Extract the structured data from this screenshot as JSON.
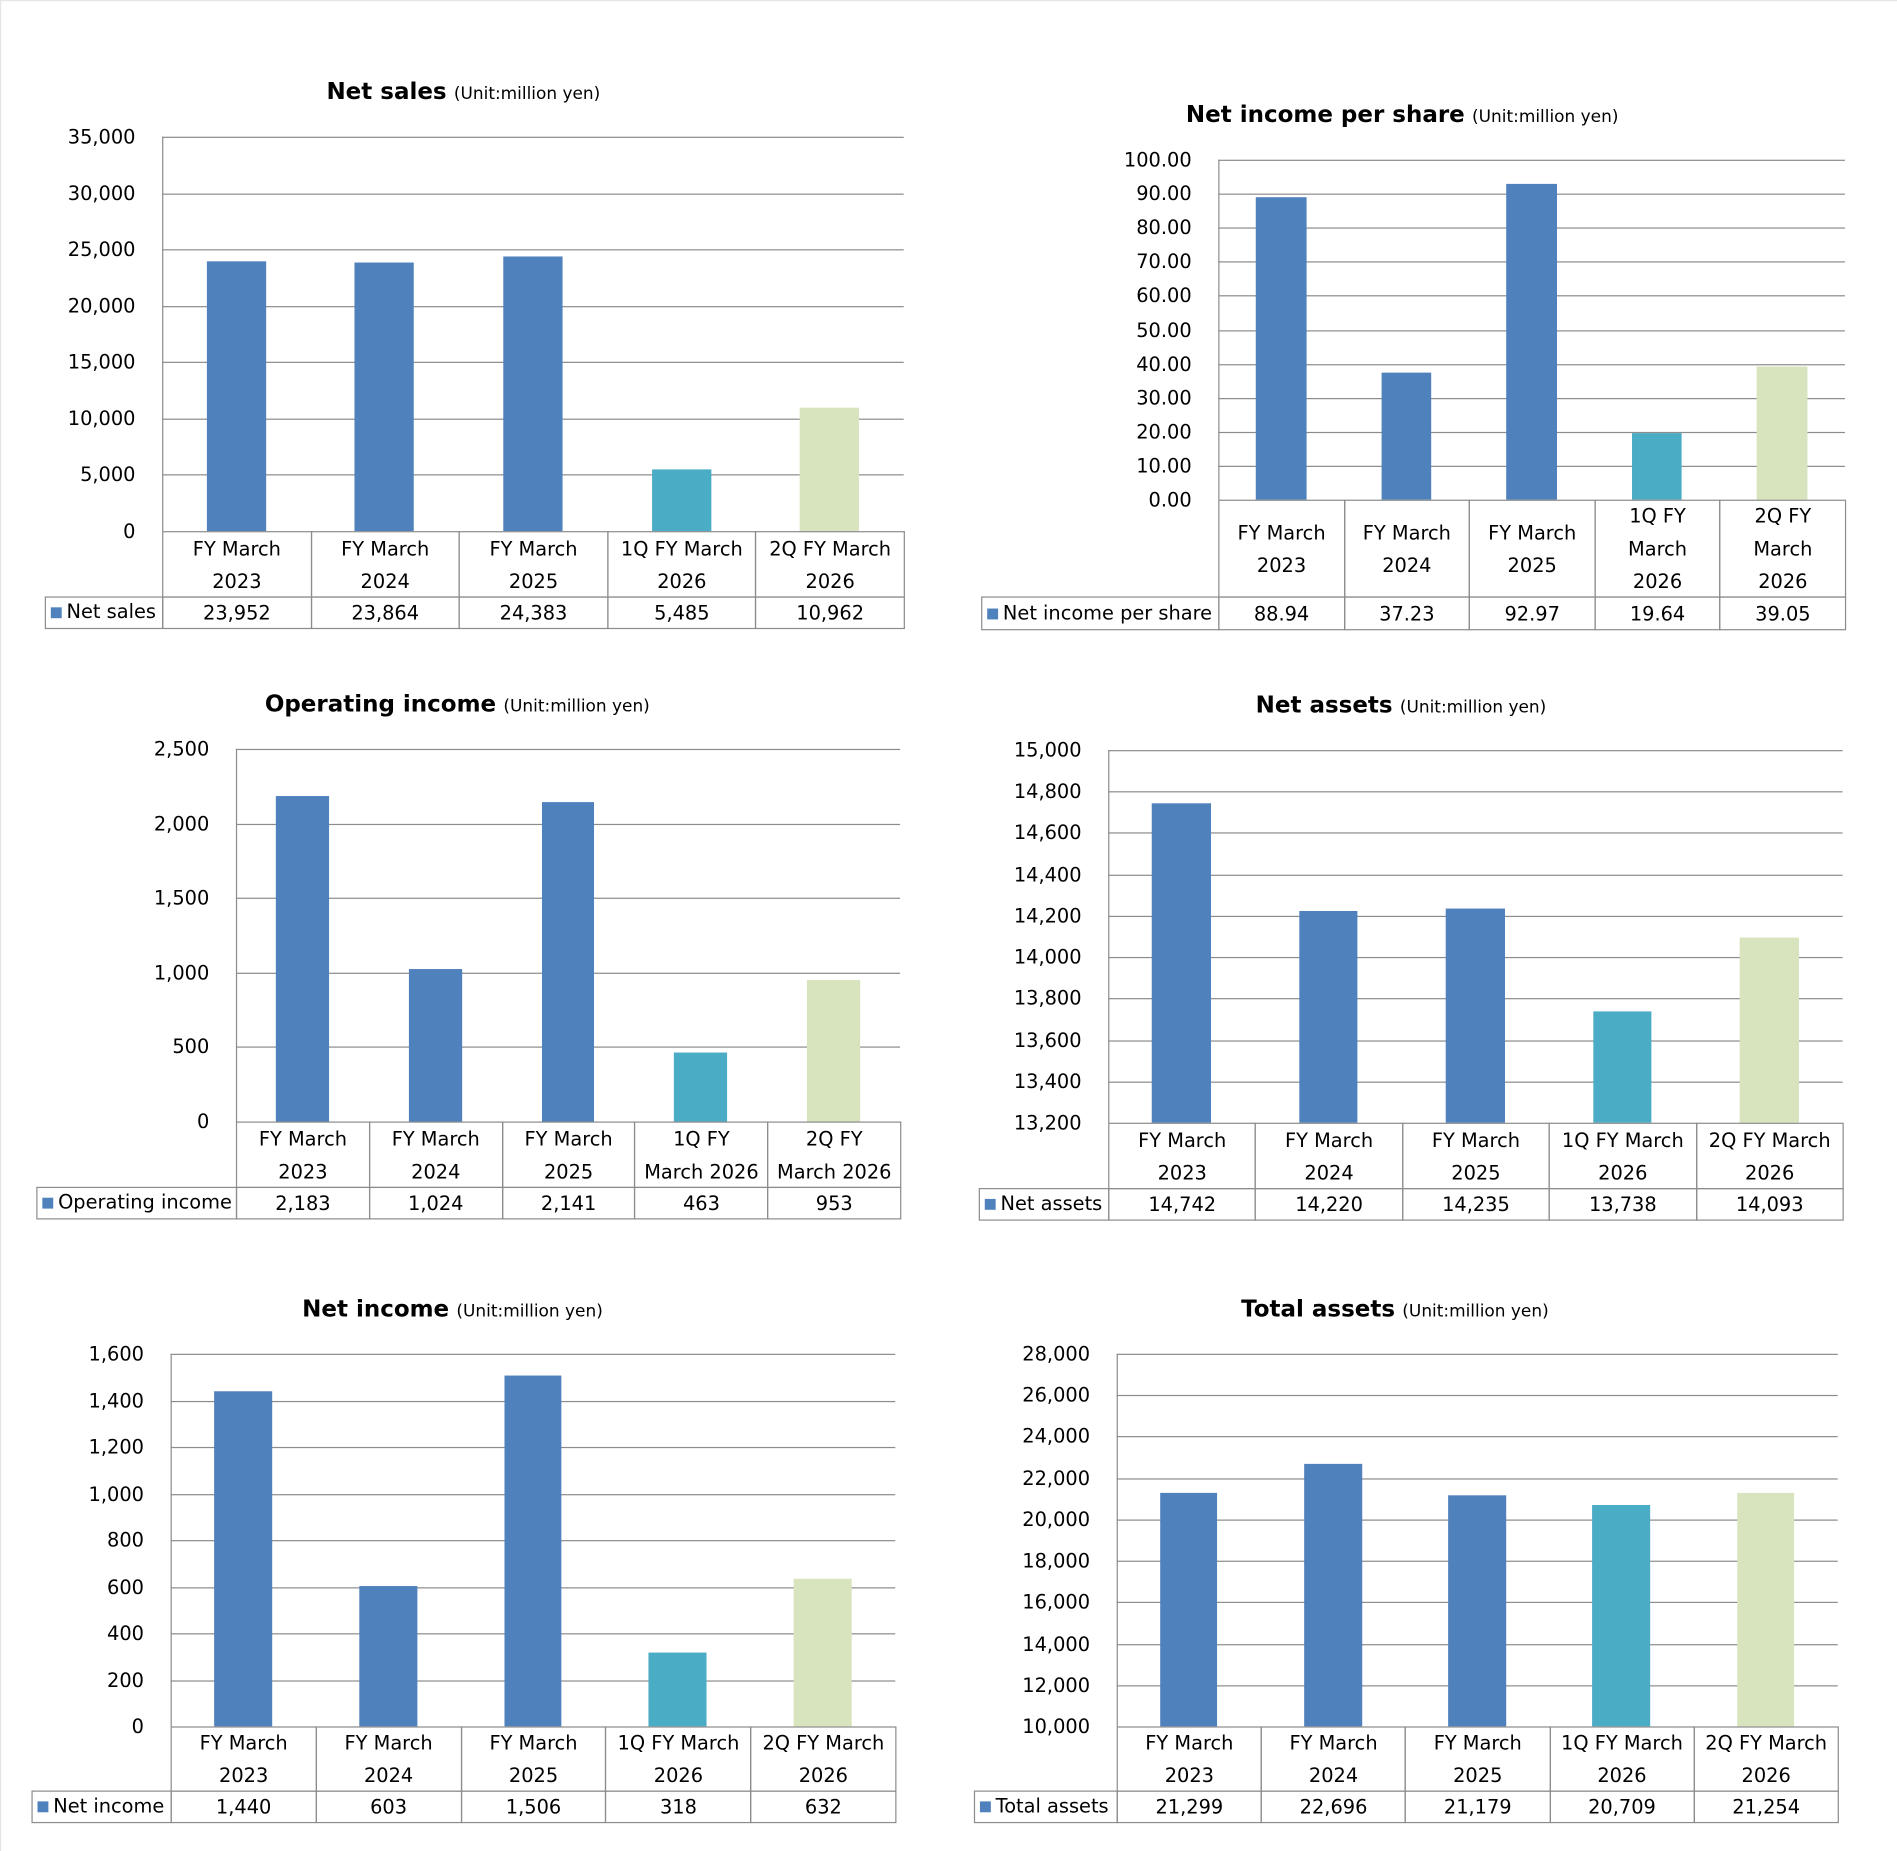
{
  "colors": {
    "fy": "#4f81bd",
    "q1": "#4bacc6",
    "q2": "#d7e4bd",
    "grid": "#8c8c8c"
  },
  "chart_data": [
    {
      "type": "bar",
      "title": "Net sales",
      "unit": "(Unit:million yen)",
      "series_name": "Net sales",
      "categories": [
        [
          "FY March",
          "2023"
        ],
        [
          "FY March",
          "2024"
        ],
        [
          "FY March",
          "2025"
        ],
        [
          "1Q FY March",
          "2026"
        ],
        [
          "2Q FY March",
          "2026"
        ]
      ],
      "values": [
        23952,
        23864,
        24383,
        5485,
        10962
      ],
      "value_labels": [
        "23,952",
        "23,864",
        "24,383",
        "5,485",
        "10,962"
      ],
      "ylim": [
        0,
        35000
      ],
      "yticks": [
        "0",
        "5,000",
        "10,000",
        "15,000",
        "20,000",
        "25,000",
        "30,000",
        "35,000"
      ]
    },
    {
      "type": "bar",
      "title": "Net income per share",
      "unit": "(Unit:million yen)",
      "series_name": "Net income per share",
      "categories": [
        [
          "FY March",
          "2023"
        ],
        [
          "FY March",
          "2024"
        ],
        [
          "FY March",
          "2025"
        ],
        [
          "1Q FY",
          "March",
          "2026"
        ],
        [
          "2Q FY",
          "March",
          "2026"
        ]
      ],
      "values": [
        88.94,
        37.23,
        92.97,
        19.64,
        39.05
      ],
      "value_labels": [
        "88.94",
        "37.23",
        "92.97",
        "19.64",
        "39.05"
      ],
      "ylim": [
        0,
        100
      ],
      "yticks": [
        "0.00",
        "10.00",
        "20.00",
        "30.00",
        "40.00",
        "50.00",
        "60.00",
        "70.00",
        "80.00",
        "90.00",
        "100.00"
      ]
    },
    {
      "type": "bar",
      "title": "Operating income",
      "unit": "(Unit:million yen)",
      "series_name": "Operating income",
      "categories": [
        [
          "FY March",
          "2023"
        ],
        [
          "FY March",
          "2024"
        ],
        [
          "FY March",
          "2025"
        ],
        [
          "1Q FY",
          "March 2026"
        ],
        [
          "2Q FY",
          "March 2026"
        ]
      ],
      "values": [
        2183,
        1024,
        2141,
        463,
        953
      ],
      "value_labels": [
        "2,183",
        "1,024",
        "2,141",
        "463",
        "953"
      ],
      "ylim": [
        0,
        2500
      ],
      "yticks": [
        "0",
        "500",
        "1,000",
        "1,500",
        "2,000",
        "2,500"
      ]
    },
    {
      "type": "bar",
      "title": "Net assets",
      "unit": "(Unit:million yen)",
      "series_name": "Net assets",
      "categories": [
        [
          "FY March",
          "2023"
        ],
        [
          "FY March",
          "2024"
        ],
        [
          "FY March",
          "2025"
        ],
        [
          "1Q FY March",
          "2026"
        ],
        [
          "2Q FY March",
          "2026"
        ]
      ],
      "values": [
        14742,
        14220,
        14235,
        13738,
        14093
      ],
      "value_labels": [
        "14,742",
        "14,220",
        "14,235",
        "13,738",
        "14,093"
      ],
      "ylim": [
        13200,
        15000
      ],
      "yticks": [
        "13,200",
        "13,400",
        "13,600",
        "13,800",
        "14,000",
        "14,200",
        "14,400",
        "14,600",
        "14,800",
        "15,000"
      ]
    },
    {
      "type": "bar",
      "title": "Net income",
      "unit": "(Unit:million yen)",
      "series_name": "Net income",
      "categories": [
        [
          "FY March",
          "2023"
        ],
        [
          "FY March",
          "2024"
        ],
        [
          "FY March",
          "2025"
        ],
        [
          "1Q FY March",
          "2026"
        ],
        [
          "2Q FY March",
          "2026"
        ]
      ],
      "values": [
        1440,
        603,
        1506,
        318,
        632
      ],
      "value_labels": [
        "1,440",
        "603",
        "1,506",
        "318",
        "632"
      ],
      "ylim": [
        0,
        1600
      ],
      "yticks": [
        "0",
        "200",
        "400",
        "600",
        "800",
        "1,000",
        "1,200",
        "1,400",
        "1,600"
      ]
    },
    {
      "type": "bar",
      "title": "Total assets",
      "unit": "(Unit:million yen)",
      "series_name": "Total assets",
      "categories": [
        [
          "FY March",
          "2023"
        ],
        [
          "FY March",
          "2024"
        ],
        [
          "FY March",
          "2025"
        ],
        [
          "1Q FY March",
          "2026"
        ],
        [
          "2Q FY March",
          "2026"
        ]
      ],
      "values": [
        21299,
        22696,
        21179,
        20709,
        21254
      ],
      "value_labels": [
        "21,299",
        "22,696",
        "21,179",
        "20,709",
        "21,254"
      ],
      "ylim": [
        10000,
        28000
      ],
      "yticks": [
        "10,000",
        "12,000",
        "14,000",
        "16,000",
        "18,000",
        "20,000",
        "22,000",
        "24,000",
        "26,000",
        "28,000"
      ]
    }
  ]
}
